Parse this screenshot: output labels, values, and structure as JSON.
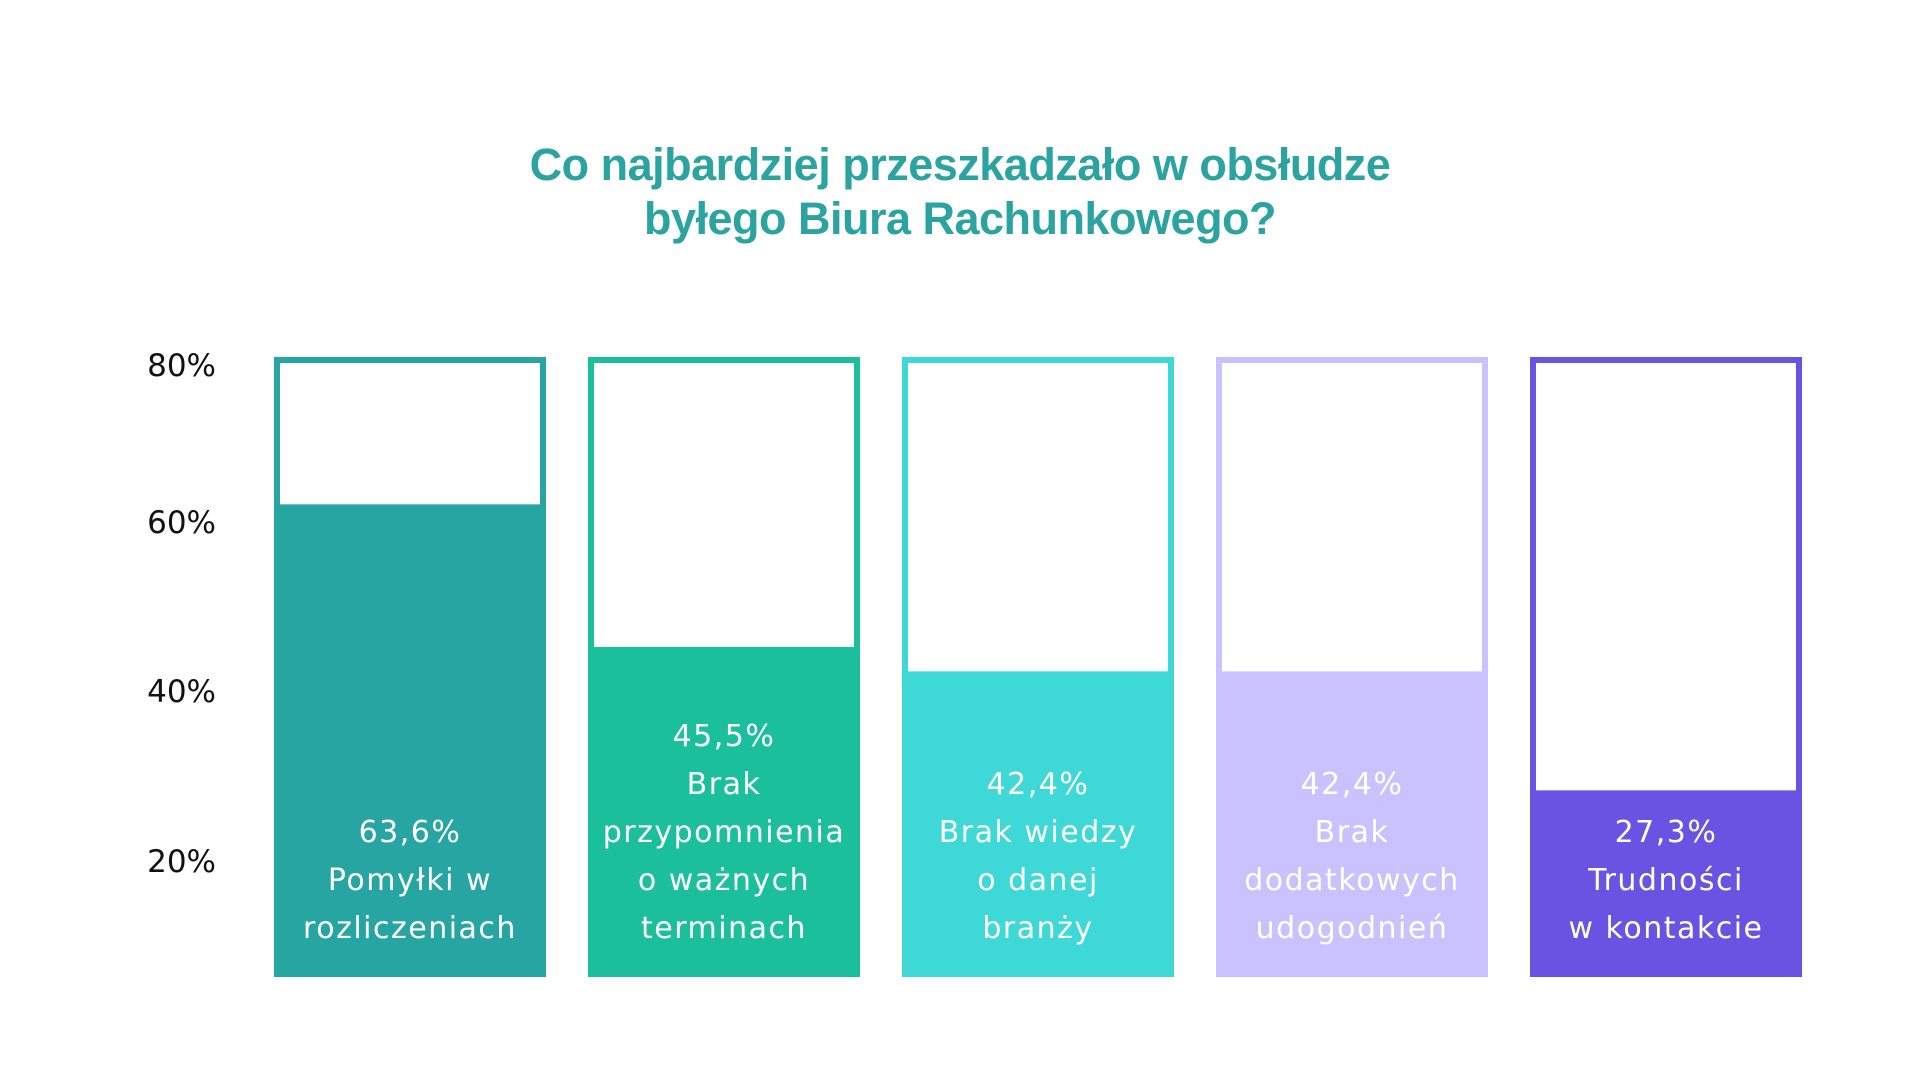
{
  "chart_data": {
    "type": "bar",
    "title_lines": [
      "Co najbardziej przeszkadzało w obsłudze",
      "byłego Biura Rachunkowego?"
    ],
    "y_ticks": [
      "80%",
      "60%",
      "40%",
      "20%"
    ],
    "y_tick_values": [
      80,
      60,
      40,
      20
    ],
    "ylim": [
      0,
      80
    ],
    "grid": false,
    "legend": "none",
    "bars": [
      {
        "value": 63.6,
        "value_label": "63,6%",
        "category_lines": [
          "Pomyłki w",
          "rozliczeniach"
        ],
        "color": "#26a5a3",
        "border_color": "#26a5a3"
      },
      {
        "value": 45.5,
        "value_label": "45,5%",
        "category_lines": [
          "Brak",
          "przypomnienia",
          "o ważnych",
          "terminach"
        ],
        "color": "#1cbf9b",
        "border_color": "#1cbf9b"
      },
      {
        "value": 42.4,
        "value_label": "42,4%",
        "category_lines": [
          "Brak wiedzy",
          "o danej",
          "branży"
        ],
        "color": "#3ed9d6",
        "border_color": "#3ed9d6"
      },
      {
        "value": 42.4,
        "value_label": "42,4%",
        "category_lines": [
          "Brak",
          "dodatkowych",
          "udogodnień"
        ],
        "color": "#c9c2ff",
        "border_color": "#c9c2ff"
      },
      {
        "value": 27.3,
        "value_label": "27,3%",
        "category_lines": [
          "Trudności",
          "w kontakcie"
        ],
        "color": "#6a52e2",
        "border_color": "#6a52e2"
      }
    ]
  }
}
